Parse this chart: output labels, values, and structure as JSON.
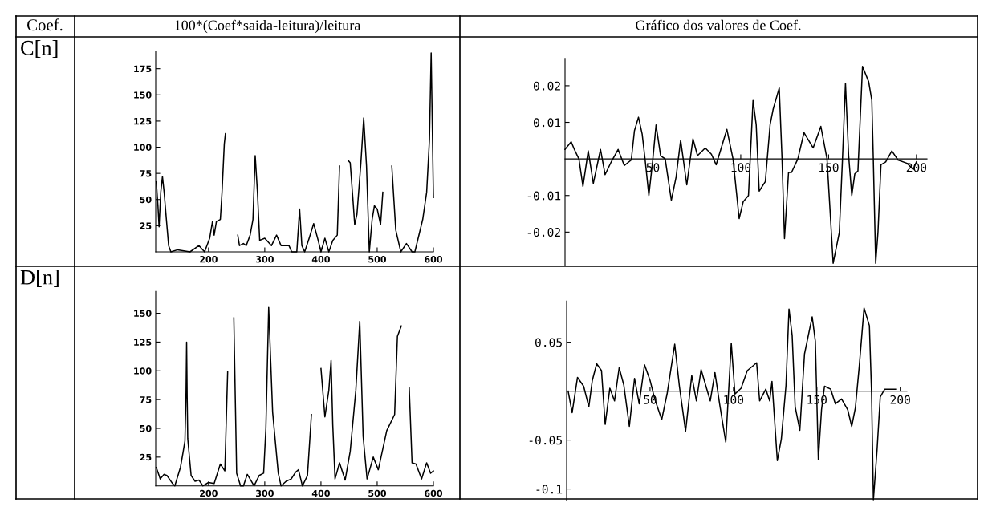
{
  "chart_data": [
    {
      "type": "other",
      "annotations": [
        "Coef.",
        "100*(Coef*saida-leitura)/leitura",
        "Gráfico dos valores de Coef.",
        "C[n]",
        "D[n]"
      ]
    },
    {
      "type": "line",
      "color": "#000000",
      "xlim": [
        106,
        600
      ],
      "ylim": [
        0,
        192
      ],
      "xticks": [
        200,
        300,
        400,
        500,
        600
      ],
      "yticks": [
        25,
        50,
        75,
        100,
        125,
        150,
        175
      ],
      "x": [
        107,
        110,
        112,
        115,
        118,
        121,
        125,
        129,
        133,
        145,
        167,
        183,
        193,
        202,
        207,
        210,
        214,
        221,
        224,
        228,
        230,
        232,
        248,
        252,
        255,
        262,
        267,
        274,
        279,
        283,
        287,
        291,
        300,
        312,
        321,
        329,
        343,
        348,
        357,
        362,
        366,
        371,
        379,
        387,
        395,
        400,
        407,
        414,
        421,
        429,
        433,
        436,
        448,
        449,
        452,
        457,
        460,
        464,
        471,
        476,
        481,
        486,
        491,
        495,
        500,
        506,
        510,
        513,
        523,
        526,
        533,
        542,
        552,
        562,
        567,
        581,
        588,
        593,
        596,
        600
      ],
      "values": [
        67,
        44,
        24,
        57,
        72,
        57,
        31,
        6,
        0,
        2,
        0,
        6,
        0,
        13,
        29,
        16,
        29,
        31,
        57,
        103,
        113,
        null,
        null,
        16,
        6,
        8,
        6,
        16,
        31,
        92,
        57,
        11,
        13,
        6,
        16,
        6,
        6,
        0,
        0,
        41,
        6,
        0,
        13,
        27,
        11,
        0,
        13,
        0,
        11,
        16,
        82,
        null,
        null,
        87,
        85,
        49,
        26,
        36,
        85,
        128,
        82,
        0,
        31,
        44,
        41,
        26,
        57,
        null,
        null,
        82,
        21,
        0,
        8,
        0,
        0,
        31,
        57,
        108,
        190,
        52
      ]
    },
    {
      "type": "line",
      "color": "#000000",
      "xlim": [
        0,
        206
      ],
      "ylim": [
        -0.029,
        0.0275
      ],
      "xticks": [
        50,
        100,
        150,
        200
      ],
      "yticks": [
        -0.02,
        -0.01,
        0.01,
        0.02
      ],
      "x": [
        0,
        3.5,
        5.3,
        7.9,
        10.2,
        13.2,
        16.1,
        20.2,
        22.8,
        26.3,
        30.2,
        33.7,
        37.7,
        39.5,
        41.8,
        43.9,
        45.6,
        47.7,
        50,
        51.8,
        54.4,
        57,
        60.5,
        63.2,
        65.8,
        69.3,
        72.8,
        75.4,
        79.8,
        83.3,
        86,
        92.1,
        95.6,
        99.1,
        101.4,
        104.4,
        107,
        108.8,
        110.5,
        114,
        116.7,
        118.4,
        121.9,
        123.5,
        124.9,
        127.2,
        128.9,
        132.5,
        136,
        141.2,
        145.6,
        149.1,
        152.6,
        156.1,
        157.9,
        159.6,
        161.4,
        163.2,
        164.9,
        166.7,
        169.3,
        172.8,
        174.6,
        175.4,
        176.8,
        178.1,
        179.8,
        182.5,
        186,
        189.5,
        194.7,
        198.2,
        200
      ],
      "values": [
        0.0026,
        0.0047,
        0.0026,
        0,
        -0.0075,
        0.0022,
        -0.0067,
        0.0026,
        -0.0043,
        -0.0008,
        0.0026,
        -0.0018,
        -0.0003,
        0.0077,
        0.0114,
        0.0068,
        -0.0003,
        -0.01,
        0,
        0.0093,
        0.0009,
        0,
        -0.0113,
        -0.005,
        0.0051,
        -0.0071,
        0.0055,
        0.0009,
        0.003,
        0.0013,
        -0.0016,
        0.0081,
        0,
        -0.0163,
        -0.0117,
        -0.01,
        0.016,
        0.0093,
        -0.0088,
        -0.0062,
        0.0093,
        0.0135,
        0.0194,
        0,
        -0.0218,
        -0.0037,
        -0.0037,
        0,
        0.0072,
        0.003,
        0.0089,
        0,
        -0.0285,
        -0.0201,
        0,
        0.0207,
        0.0009,
        -0.01,
        -0.0041,
        -0.0033,
        0.0253,
        0.0211,
        0.016,
        0.0009,
        -0.0285,
        -0.0201,
        -0.0016,
        -0.0008,
        0.0022,
        -0.0003,
        -0.0012,
        -0.0029,
        -0.0008
      ]
    },
    {
      "type": "line",
      "color": "#000000",
      "xlim": [
        106,
        600
      ],
      "ylim": [
        0,
        169
      ],
      "xticks": [
        200,
        300,
        400,
        500,
        600
      ],
      "yticks": [
        25,
        50,
        75,
        100,
        125,
        150
      ],
      "x": [
        107,
        112,
        114,
        121,
        126,
        136,
        140,
        150,
        155,
        158,
        160,
        161,
        162,
        163,
        169,
        176,
        183,
        190,
        200,
        210,
        221,
        229,
        234,
        236,
        243,
        245,
        250,
        257,
        262,
        269,
        281,
        290,
        298,
        302,
        307,
        314,
        324,
        329,
        338,
        347,
        355,
        360,
        367,
        376,
        383,
        389,
        397,
        400,
        407,
        414,
        418,
        421,
        425,
        433,
        443,
        452,
        462,
        469,
        475,
        482,
        493,
        502,
        517,
        531,
        536,
        543,
        552,
        555,
        557,
        562,
        569,
        579,
        588,
        595,
        600
      ],
      "values": [
        16,
        9,
        6,
        10,
        9,
        2,
        0,
        16,
        30,
        39,
        81,
        125,
        76,
        41,
        9,
        4,
        5,
        0,
        3,
        2,
        19,
        13,
        99,
        null,
        null,
        146,
        11,
        0,
        0,
        10,
        0,
        9,
        11,
        50,
        155,
        64,
        11,
        0,
        4,
        6,
        12,
        14,
        0,
        9,
        62,
        null,
        null,
        102,
        60,
        83,
        109,
        53,
        6,
        20,
        5,
        30,
        83,
        143,
        43,
        6,
        25,
        14,
        48,
        62,
        130,
        139,
        null,
        null,
        85,
        20,
        19,
        6,
        20,
        11,
        13
      ]
    },
    {
      "type": "line",
      "color": "#000000",
      "xlim": [
        0,
        204
      ],
      "ylim": [
        -0.112,
        0.092
      ],
      "xticks": [
        50,
        100,
        150,
        200
      ],
      "yticks": [
        -0.1,
        -0.05,
        0.05
      ],
      "x": [
        0.9,
        3.3,
        6.5,
        10.2,
        13.3,
        15.4,
        18,
        20.9,
        23.1,
        25.9,
        28.7,
        31.5,
        34.3,
        37.6,
        40.7,
        43.5,
        46.7,
        50,
        52.8,
        57,
        60.2,
        64.8,
        67.6,
        71.3,
        75,
        77.8,
        80.6,
        86.1,
        88.9,
        91.7,
        95.4,
        98.7,
        100.9,
        104.6,
        108.3,
        113.9,
        115.7,
        119.4,
        121.7,
        123.1,
        126.3,
        128.7,
        131.5,
        133.3,
        135.2,
        137,
        139.8,
        142.6,
        147.2,
        149.1,
        150.9,
        152.8,
        154.6,
        158.3,
        161.1,
        164.8,
        168.5,
        170.9,
        173.1,
        175.4,
        178.3,
        181.5,
        182.8,
        183.9,
        186.1,
        188,
        190.7,
        194.4,
        197.2
      ],
      "values": [
        0,
        -0.022,
        0.014,
        0.005,
        -0.016,
        0.011,
        0.028,
        0.021,
        -0.034,
        0.003,
        -0.01,
        0.024,
        0.006,
        -0.036,
        0.013,
        -0.013,
        0.027,
        0.011,
        -0.008,
        -0.029,
        -0.003,
        0.048,
        0.005,
        -0.041,
        0.016,
        -0.01,
        0.022,
        -0.01,
        0.019,
        -0.013,
        -0.052,
        0.049,
        -0.003,
        0.003,
        0.021,
        0.029,
        -0.01,
        0.002,
        -0.01,
        0.01,
        -0.071,
        -0.049,
        0.006,
        0.084,
        0.057,
        -0.016,
        -0.04,
        0.038,
        0.076,
        0.051,
        -0.07,
        -0.019,
        0.005,
        0.002,
        -0.013,
        -0.008,
        -0.019,
        -0.036,
        -0.017,
        0.025,
        0.085,
        0.067,
        -0.002,
        -0.111,
        -0.06,
        -0.006,
        0.002,
        0.002,
        0.002
      ]
    }
  ]
}
